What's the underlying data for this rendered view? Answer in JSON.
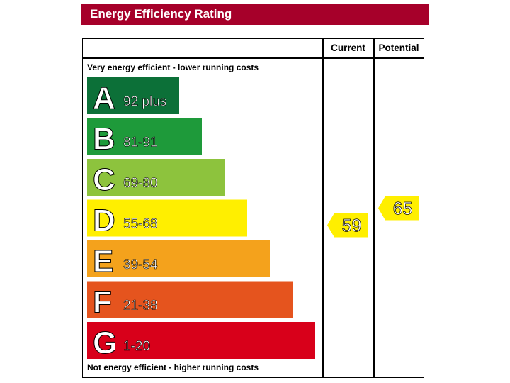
{
  "header": {
    "title": "Energy Efficiency Rating"
  },
  "columns": {
    "current": "Current",
    "potential": "Potential"
  },
  "captions": {
    "top": "Very energy efficient - lower running costs",
    "bottom": "Not energy efficient - higher running costs"
  },
  "chart_data": {
    "type": "bar",
    "categories": [
      "A",
      "B",
      "C",
      "D",
      "E",
      "F",
      "G"
    ],
    "ranges": [
      "92 plus",
      "81-91",
      "69-80",
      "55-68",
      "39-54",
      "21-38",
      "1-20"
    ],
    "colors": [
      "#0c7038",
      "#1e9a3a",
      "#8dc33d",
      "#ffef00",
      "#f4a21c",
      "#e5541e",
      "#d8001a"
    ],
    "current": {
      "value": 59,
      "band": "D",
      "color": "#ffef00"
    },
    "potential": {
      "value": 65,
      "band": "D",
      "color": "#ffef00"
    }
  }
}
